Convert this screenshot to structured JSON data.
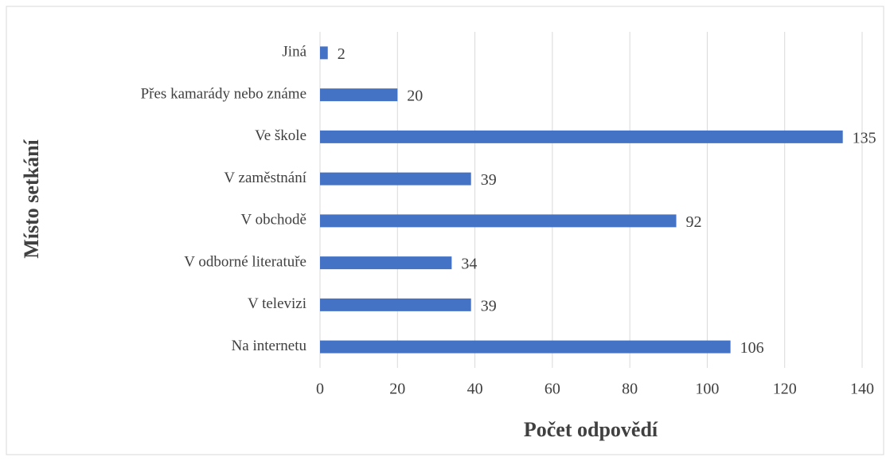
{
  "chart_data": {
    "type": "bar",
    "orientation": "horizontal",
    "x_label": "Počet odpovědí",
    "y_label": "Místo setkání",
    "categories": [
      "Jiná",
      "Přes kamarády nebo známe",
      "Ve škole",
      "V zaměstnání",
      "V obchodě",
      "V odborné literatuře",
      "V televizi",
      "Na internetu"
    ],
    "values": [
      2,
      20,
      135,
      39,
      92,
      34,
      39,
      106
    ],
    "color": "#4472c4",
    "xlim": [
      0,
      140
    ],
    "xticks": [
      0,
      20,
      40,
      60,
      80,
      100,
      120,
      140
    ],
    "grid": true
  }
}
